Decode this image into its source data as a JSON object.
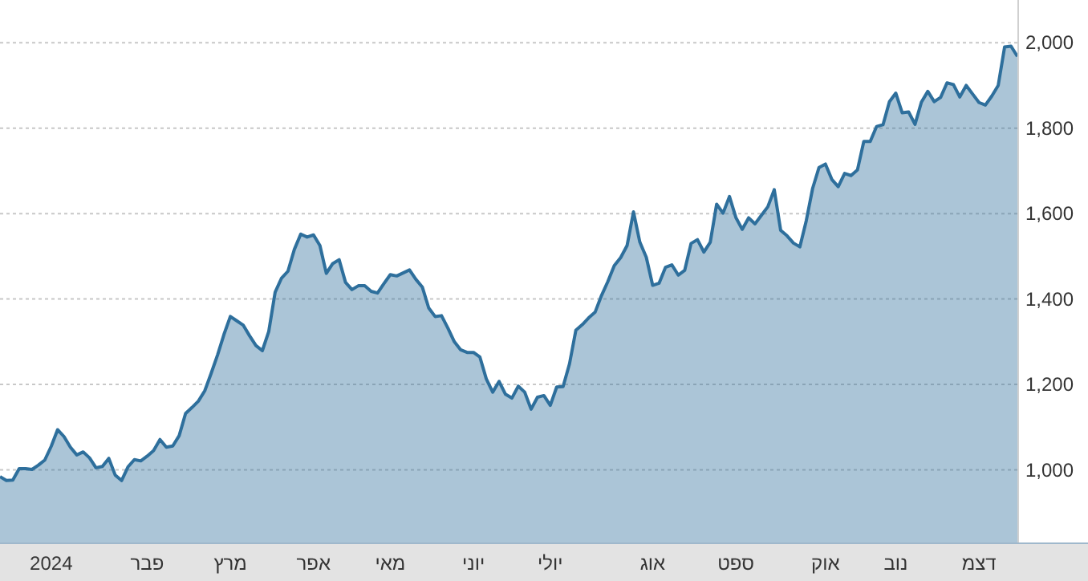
{
  "chart_data": {
    "type": "area",
    "categories": [
      null,
      null,
      null,
      null,
      null,
      null,
      null,
      null,
      "2024",
      null,
      null,
      null,
      null,
      null,
      null,
      null,
      null,
      null,
      null,
      null,
      null,
      null,
      null,
      "פבר",
      null,
      null,
      null,
      null,
      null,
      null,
      null,
      null,
      null,
      null,
      null,
      null,
      "מרץ",
      null,
      null,
      null,
      null,
      null,
      null,
      null,
      null,
      null,
      null,
      null,
      null,
      "אפר",
      null,
      null,
      null,
      null,
      null,
      null,
      null,
      null,
      null,
      null,
      null,
      "מאי",
      null,
      null,
      null,
      null,
      null,
      null,
      null,
      null,
      null,
      null,
      null,
      null,
      "יוני",
      null,
      null,
      null,
      null,
      null,
      null,
      null,
      null,
      null,
      null,
      null,
      "יולי",
      null,
      null,
      null,
      null,
      null,
      null,
      null,
      null,
      null,
      null,
      null,
      null,
      null,
      null,
      null,
      "אוג",
      null,
      null,
      null,
      null,
      null,
      null,
      null,
      null,
      null,
      null,
      null,
      null,
      "ספט",
      null,
      null,
      null,
      null,
      null,
      null,
      null,
      null,
      null,
      null,
      null,
      null,
      null,
      "אוק",
      null,
      null,
      null,
      null,
      null,
      null,
      null,
      null,
      null,
      null,
      "נוב",
      null,
      null,
      null,
      null,
      null,
      null,
      null,
      null,
      null,
      null,
      null,
      null,
      "דצמ",
      null,
      null,
      null,
      null,
      null,
      null
    ],
    "series": [
      {
        "color": "#2e6f9c",
        "values": [
          984,
          975,
          976,
          1003,
          1003,
          1001,
          1011,
          1023,
          1055,
          1094,
          1078,
          1053,
          1035,
          1042,
          1028,
          1005,
          1008,
          1027,
          988,
          975,
          1007,
          1024,
          1021,
          1032,
          1045,
          1071,
          1053,
          1056,
          1080,
          1132,
          1146,
          1161,
          1185,
          1226,
          1269,
          1317,
          1359,
          1349,
          1339,
          1314,
          1291,
          1279,
          1324,
          1416,
          1449,
          1465,
          1516,
          1552,
          1545,
          1550,
          1525,
          1460,
          1483,
          1492,
          1439,
          1422,
          1431,
          1431,
          1418,
          1414,
          1436,
          1457,
          1454,
          1461,
          1468,
          1446,
          1428,
          1379,
          1359,
          1361,
          1332,
          1300,
          1281,
          1275,
          1275,
          1264,
          1213,
          1182,
          1207,
          1177,
          1168,
          1196,
          1182,
          1142,
          1170,
          1174,
          1151,
          1194,
          1195,
          1248,
          1327,
          1340,
          1356,
          1369,
          1408,
          1441,
          1478,
          1497,
          1525,
          1604,
          1533,
          1498,
          1432,
          1437,
          1474,
          1480,
          1456,
          1467,
          1530,
          1539,
          1510,
          1533,
          1622,
          1601,
          1640,
          1591,
          1563,
          1590,
          1576,
          1596,
          1616,
          1656,
          1561,
          1548,
          1531,
          1522,
          1583,
          1659,
          1708,
          1716,
          1680,
          1663,
          1694,
          1689,
          1702,
          1769,
          1769,
          1804,
          1808,
          1862,
          1882,
          1836,
          1838,
          1809,
          1861,
          1886,
          1862,
          1872,
          1906,
          1902,
          1873,
          1900,
          1880,
          1860,
          1854,
          1875,
          1900,
          1990,
          1992,
          1968
        ]
      }
    ],
    "ylim": [
      830,
      2100
    ],
    "yticks": [
      {
        "value": 1000,
        "label": "1,000"
      },
      {
        "value": 1200,
        "label": "1,200"
      },
      {
        "value": 1400,
        "label": "1,400"
      },
      {
        "value": 1600,
        "label": "1,600"
      },
      {
        "value": 1800,
        "label": "1,800"
      },
      {
        "value": 2000,
        "label": "2,000"
      }
    ],
    "grid": "y"
  }
}
